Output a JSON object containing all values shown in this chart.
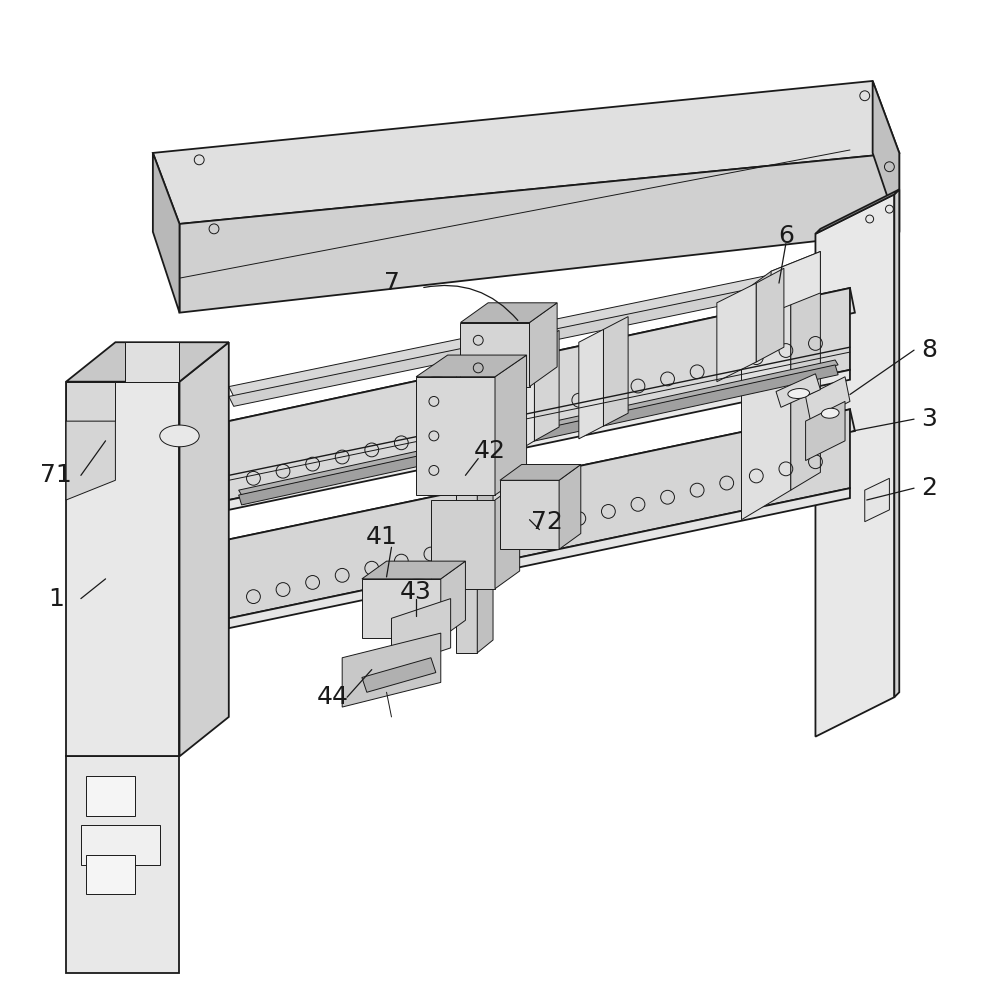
{
  "background_color": "#ffffff",
  "line_color": "#1a1a1a",
  "label_color": "#1a1a1a",
  "figsize": [
    9.91,
    10.0
  ],
  "dpi": 100,
  "lw_main": 1.3,
  "lw_thin": 0.7,
  "lw_thick": 1.8,
  "shade_top": "#ebebeb",
  "shade_front": "#d8d8d8",
  "shade_side": "#c8c8c8",
  "shade_dark": "#b8b8b8",
  "shade_white": "#f5f5f5"
}
